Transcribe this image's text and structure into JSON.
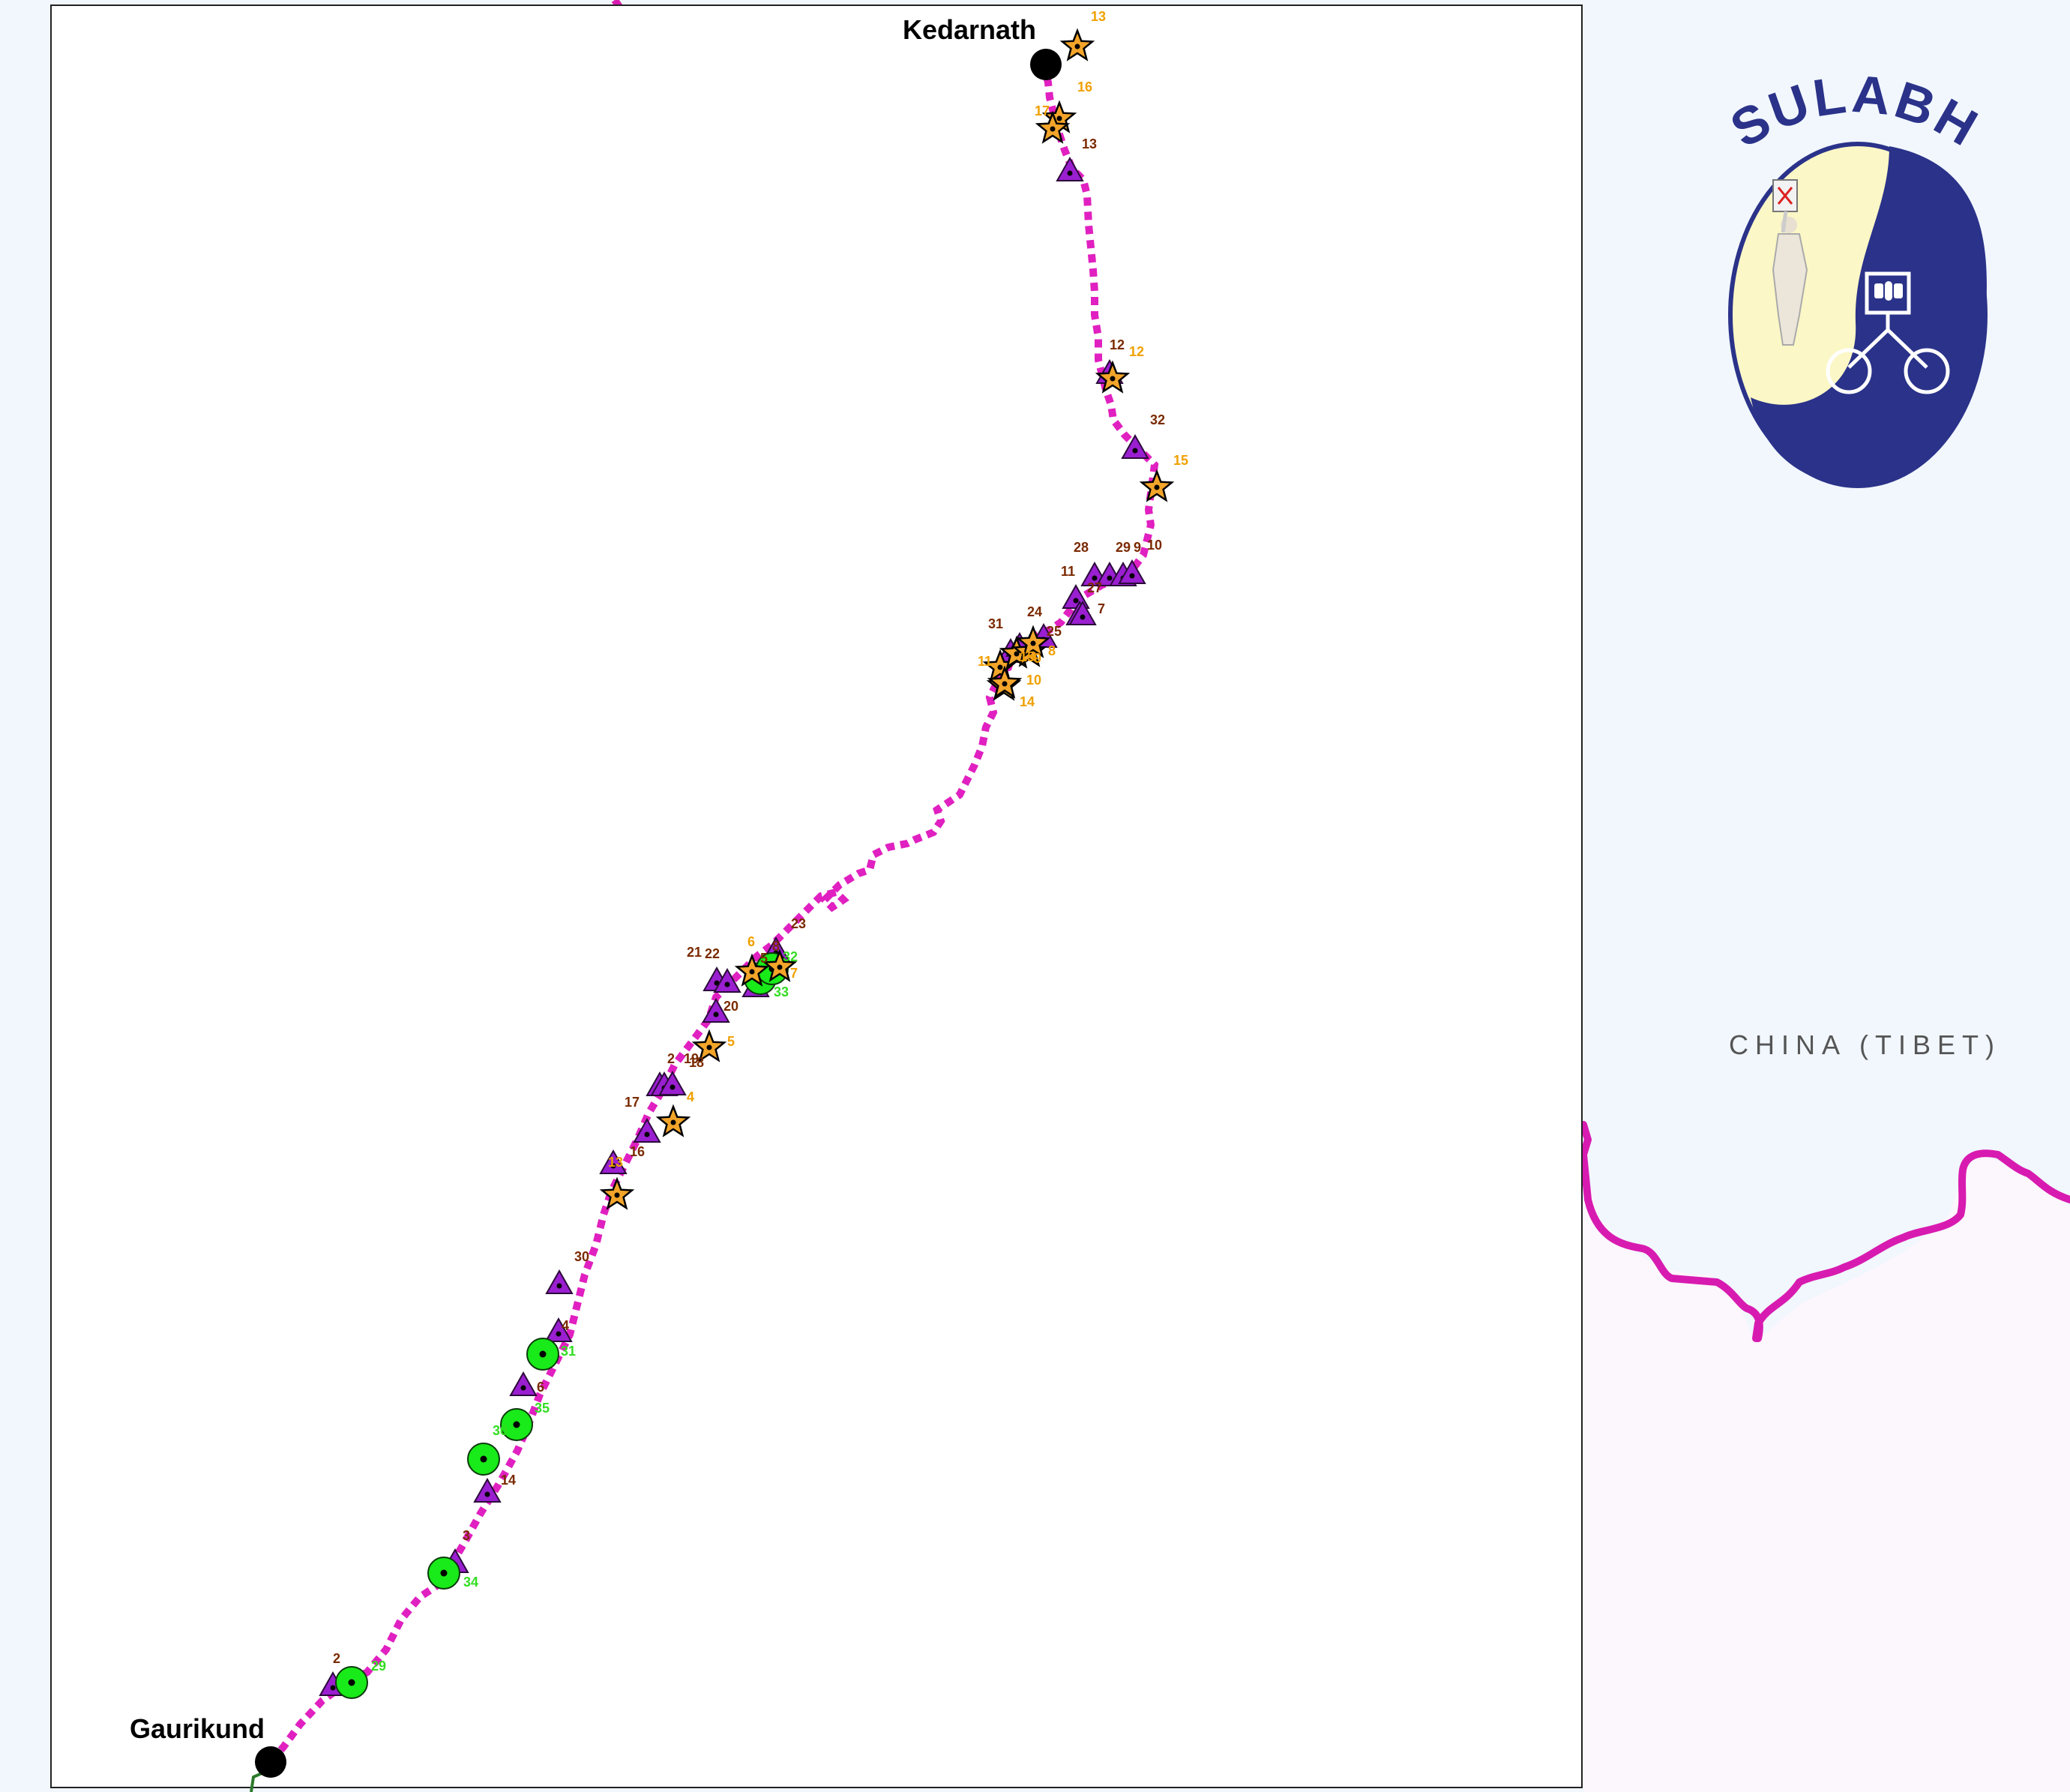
{
  "places": {
    "start": "Gaurikund",
    "end": "Kedarnath"
  },
  "region_label": "CHINA (TIBET)",
  "logo": {
    "text": "SULABH"
  },
  "colors": {
    "route": "#e020c0",
    "border": "#d81bb0",
    "triangle": "#9a1fd0",
    "star": "#f3a52a",
    "circle": "#19ea19",
    "label_triangle": "#7a2a00",
    "label_star": "#f0a000",
    "label_circle": "#33dd22",
    "logo_navy": "#2a3289",
    "logo_cream": "#fbf7c6"
  },
  "markers": {
    "triangles": [
      "13",
      "12",
      "32",
      "28",
      "29",
      "9",
      "10",
      "11",
      "27",
      "7",
      "31",
      "25",
      "24",
      "23",
      "8",
      "21",
      "22",
      "5",
      "20",
      "2",
      "19",
      "18",
      "17",
      "16",
      "30",
      "4",
      "6",
      "14",
      "3",
      "2"
    ],
    "stars": [
      "13",
      "16",
      "17",
      "12",
      "15",
      "11",
      "15",
      "9",
      "8",
      "10",
      "14",
      "6",
      "7",
      "5",
      "4",
      "13"
    ],
    "circles": [
      "33",
      "31",
      "35",
      "30",
      "34",
      "29",
      "32"
    ]
  },
  "legend_icons": [
    "triangle-marker-icon",
    "star-marker-icon",
    "circle-marker-icon",
    "city-dot-icon"
  ]
}
